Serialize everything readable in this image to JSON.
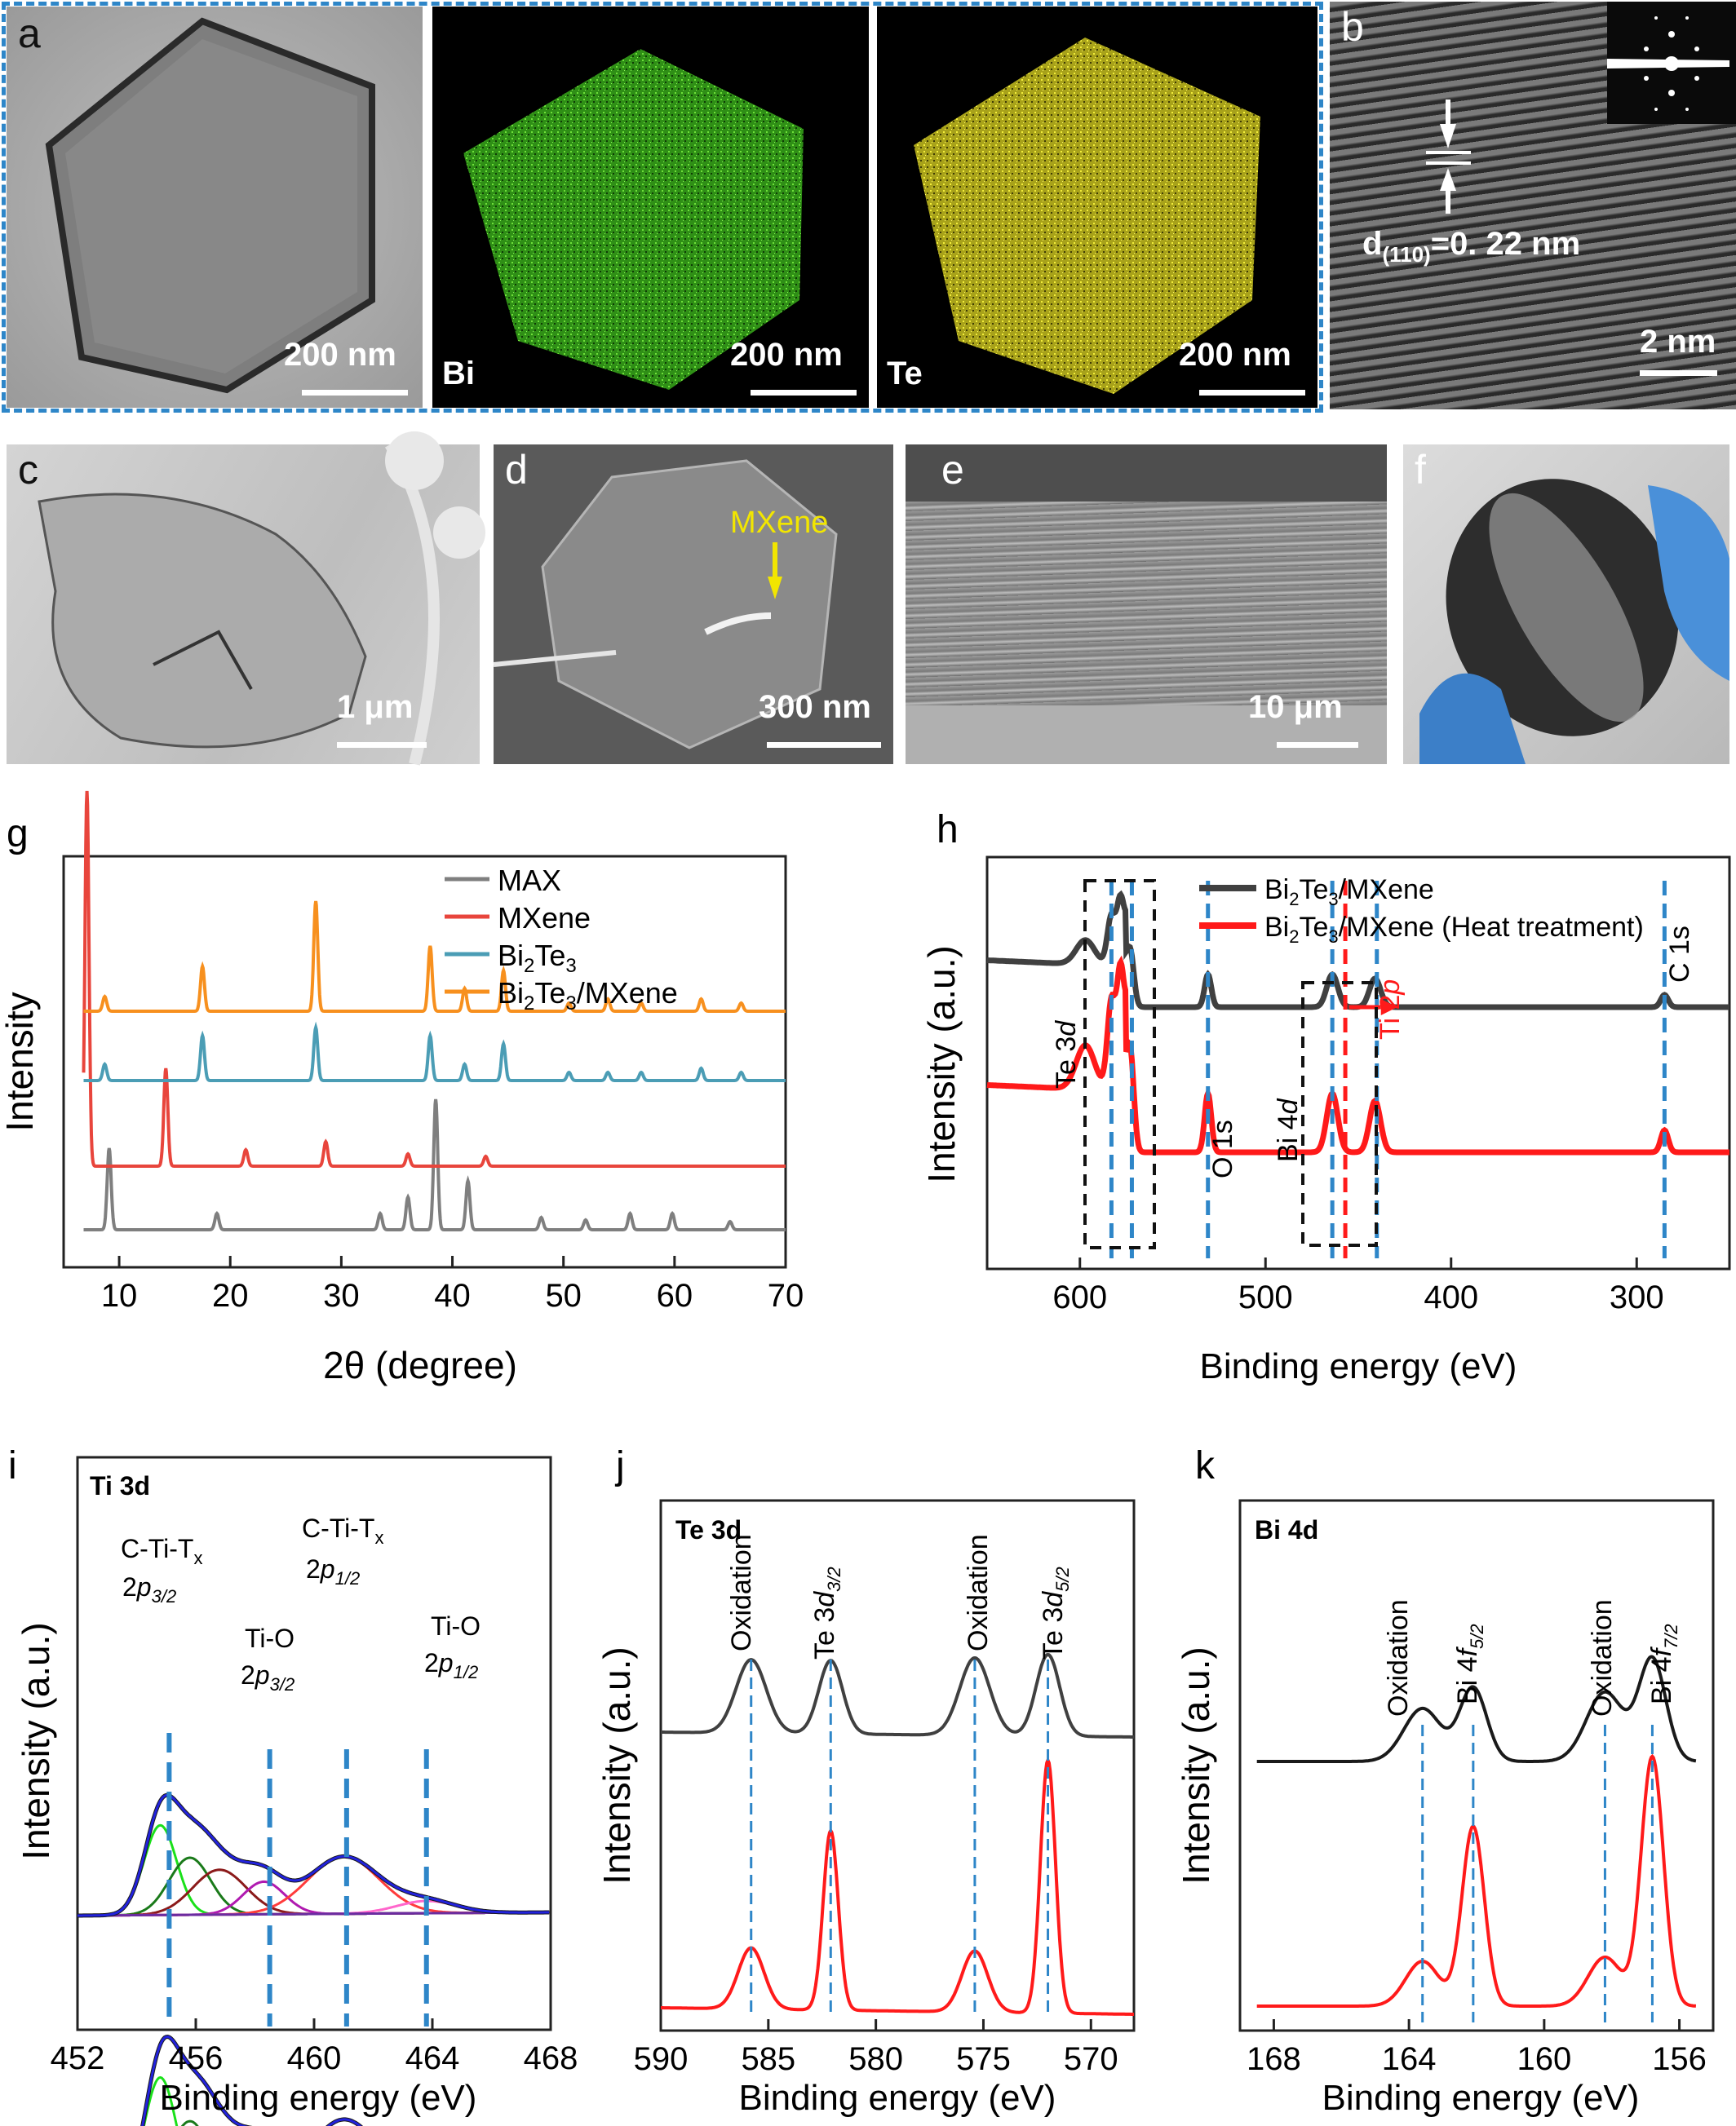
{
  "micrographs": {
    "a": {
      "label": "a",
      "scale": "200 nm"
    },
    "bi_map": {
      "element": "Bi",
      "scale": "200 nm"
    },
    "te_map": {
      "element": "Te",
      "scale": "200 nm"
    },
    "b": {
      "label": "b",
      "d_spacing": "d(110)=0. 22 nm",
      "d_main": "d",
      "d_sub": "(110)",
      "d_rest": "=0. 22 nm",
      "scale": "2 nm"
    },
    "c": {
      "label": "c",
      "scale": "1 μm"
    },
    "d": {
      "label": "d",
      "annotation": "MXene",
      "scale": "300 nm"
    },
    "e": {
      "label": "e",
      "scale": "10 μm"
    },
    "f": {
      "label": "f"
    }
  },
  "chart_data": [
    {
      "panel": "g",
      "type": "line",
      "xlabel": "2θ (degree)",
      "ylabel": "Intensity",
      "xlim": [
        5,
        70
      ],
      "xticks": [
        10,
        20,
        30,
        40,
        50,
        60,
        70
      ],
      "legend_position": "top-right",
      "series": [
        {
          "name": "MAX",
          "color": "#7f7f7f",
          "peaks_2theta": [
            9.1,
            18.8,
            33.5,
            36.0,
            38.5,
            41.4,
            48.0,
            52.0,
            56.0,
            59.8,
            65.0
          ]
        },
        {
          "name": "MXene",
          "color": "#e8453c",
          "peaks_2theta": [
            7.1,
            14.2,
            21.4,
            28.6,
            36.0,
            43.0
          ]
        },
        {
          "name": "Bi2Te3",
          "color": "#4b9db5",
          "peaks_2theta": [
            8.7,
            17.5,
            27.7,
            38.0,
            41.1,
            44.6,
            50.5,
            54.0,
            57.0,
            62.4,
            66.0
          ]
        },
        {
          "name": "Bi2Te3/MXene",
          "color": "#f7901e",
          "peaks_2theta": [
            8.7,
            17.5,
            27.7,
            38.0,
            41.1,
            44.6,
            50.5,
            54.0,
            57.0,
            62.4,
            66.0
          ]
        }
      ]
    },
    {
      "panel": "h",
      "type": "line",
      "xlabel": "Binding energy (eV)",
      "ylabel": "Intensity (a.u.)",
      "xlim": [
        650,
        250
      ],
      "xticks": [
        600,
        500,
        400,
        300
      ],
      "legend_position": "top-right",
      "series": [
        {
          "name": "Bi2Te3/MXene",
          "color": "#404040"
        },
        {
          "name": "Bi2Te3/MXene (Heat treatment)",
          "color": "#ff1a1a"
        }
      ],
      "annotations": [
        "Te 3d",
        "O 1s",
        "Bi 4d",
        "Ti 2p",
        "C 1s"
      ],
      "marker_positions_eV": [
        583,
        572,
        531,
        464,
        440,
        457,
        285
      ]
    },
    {
      "panel": "i",
      "type": "line",
      "title": "Ti 3d",
      "xlabel": "Binding energy (eV)",
      "ylabel": "Intensity (a.u.)",
      "xlim": [
        452,
        468
      ],
      "xticks": [
        452,
        456,
        460,
        464,
        468
      ],
      "peak_labels": [
        "C-Ti-Tx 2p3/2",
        "Ti-O 2p3/2",
        "C-Ti-Tx 2p1/2",
        "Ti-O 2p1/2"
      ],
      "marker_positions_eV": [
        455.1,
        458.5,
        461.1,
        463.8
      ]
    },
    {
      "panel": "j",
      "type": "line",
      "title": "Te 3d",
      "xlabel": "Binding energy (eV)",
      "ylabel": "Intensity (a.u.)",
      "xlim": [
        590,
        568
      ],
      "xticks": [
        590,
        585,
        580,
        575,
        570
      ],
      "peak_labels": [
        "Oxidation",
        "Te 3d3/2",
        "Oxidation",
        "Te 3d5/2"
      ],
      "marker_positions_eV": [
        585.8,
        582.1,
        575.4,
        572.0
      ]
    },
    {
      "panel": "k",
      "type": "line",
      "title": "Bi 4d",
      "xlabel": "Binding energy (eV)",
      "ylabel": "Intensity (a.u.)",
      "xlim": [
        169,
        155
      ],
      "xticks": [
        168,
        164,
        160,
        156
      ],
      "peak_labels": [
        "Oxidation",
        "Bi 4f5/2",
        "Oxidation",
        "Bi 4f7/2"
      ],
      "marker_positions_eV": [
        163.6,
        162.1,
        158.2,
        156.8
      ]
    }
  ],
  "labels": {
    "g": {
      "panel": "g",
      "ylabel": "Intensity",
      "xlabel": "2θ (degree)",
      "legend": [
        {
          "pre": "MAX",
          "sub": "",
          "mid": "",
          "sub2": "",
          "post": ""
        },
        {
          "pre": "MXene",
          "sub": "",
          "mid": "",
          "sub2": "",
          "post": ""
        },
        {
          "pre": "Bi",
          "sub": "2",
          "mid": "Te",
          "sub2": "3",
          "post": ""
        },
        {
          "pre": "Bi",
          "sub": "2",
          "mid": "Te",
          "sub2": "3",
          "post": "/MXene"
        }
      ],
      "ticks": [
        "10",
        "20",
        "30",
        "40",
        "50",
        "60",
        "70"
      ]
    },
    "h": {
      "panel": "h",
      "ylabel": "Intensity (a.u.)",
      "xlabel": "Binding energy (eV)",
      "legend1_pre": "Bi",
      "legend1_post": "/MXene",
      "legend2_post": "/MXene (Heat treatment)",
      "te3d": "Te 3",
      "d": "d",
      "o1s": "O 1s",
      "bi4d": "Bi 4",
      "ti2p": "Ti 2",
      "p": "p",
      "c1s": "C 1s",
      "ticks": [
        "600",
        "500",
        "400",
        "300"
      ]
    },
    "i": {
      "panel": "i",
      "title": "Ti 3d",
      "ylabel": "Intensity (a.u.)",
      "xlabel": "Binding energy (eV)",
      "ctit": "C-Ti-T",
      "x": "x",
      "two": "2",
      "p32": "3/2",
      "p12": "1/2",
      "tio": "Ti-O",
      "ticks": [
        "452",
        "456",
        "460",
        "464",
        "468"
      ]
    },
    "j": {
      "panel": "j",
      "title": "Te 3d",
      "ylabel": "Intensity (a.u.)",
      "xlabel": "Binding energy (eV)",
      "ox": "Oxidation",
      "te": "Te 3",
      "d32": "3/2",
      "d52": "5/2",
      "ticks": [
        "590",
        "585",
        "580",
        "575",
        "570"
      ]
    },
    "k": {
      "panel": "k",
      "title": "Bi 4d",
      "ylabel": "Intensity (a.u.)",
      "xlabel": "Binding energy (eV)",
      "ox": "Oxidation",
      "bi": "Bi 4",
      "f52": "5/2",
      "f72": "7/2",
      "ticks": [
        "168",
        "164",
        "160",
        "156"
      ]
    }
  },
  "colors": {
    "blue_dash": "#2e86c8",
    "frame": "#2e86c8",
    "mxene_arrow": "#f2e600"
  }
}
